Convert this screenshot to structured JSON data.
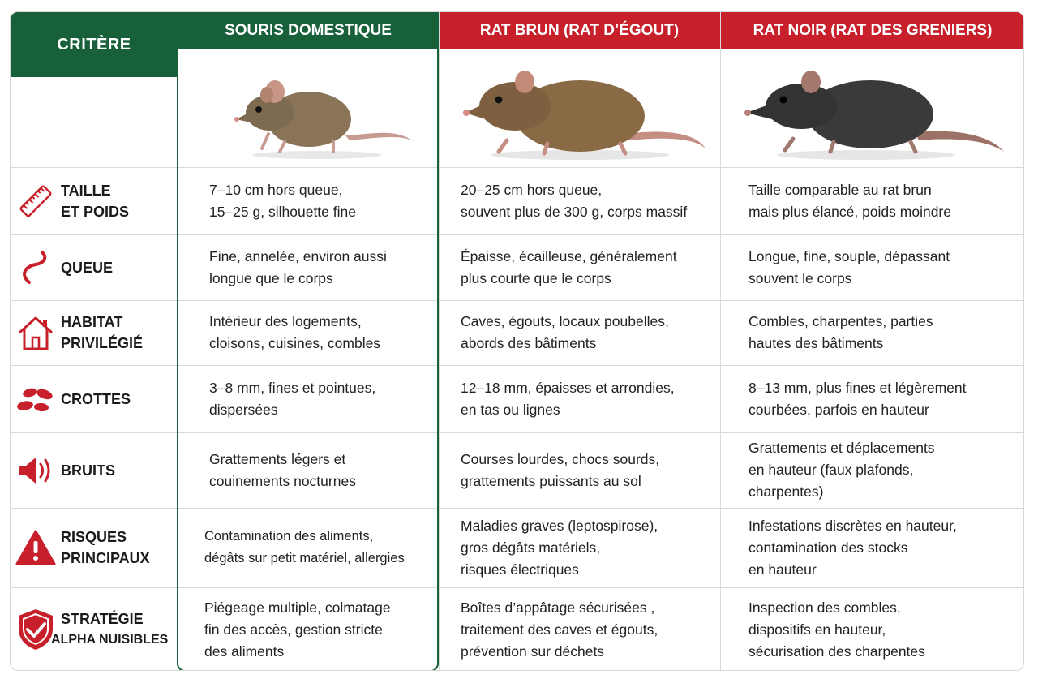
{
  "headers": {
    "criterion": "CRITÈRE",
    "columns": [
      "SOURIS DOMESTIQUE",
      "RAT BRUN (RAT D’ÉGOUT)",
      "RAT NOIR (RAT DES GRENIERS)"
    ]
  },
  "colors": {
    "green": "#17603a",
    "red": "#c8202b"
  },
  "rows": [
    {
      "icon": "ruler-icon",
      "label": "TAILLE\nET POIDS",
      "mouse": "7–10 cm hors queue,\n15–25 g, silhouette fine",
      "brown": "20–25 cm hors queue,\nsouvent plus de 300 g, corps massif",
      "black": "Taille comparable au rat brun\nmais plus élancé, poids moindre"
    },
    {
      "icon": "tail-icon",
      "label": "QUEUE",
      "mouse": "Fine, annelée, environ aussi\nlongue que le corps",
      "brown": "Épaisse, écailleuse, généralement\nplus courte que le corps",
      "black": "Longue, fine, souple, dépassant\nsouvent le corps"
    },
    {
      "icon": "house-icon",
      "label": "HABITAT\nPRIVILÉGIÉ",
      "mouse": "Intérieur des logements,\ncloisons, cuisines, combles",
      "brown": "Caves, égouts, locaux poubelles,\nabords des bâtiments",
      "black": "Combles, charpentes, parties\nhautes des bâtiments"
    },
    {
      "icon": "droppings-icon",
      "label": "CROTTES",
      "mouse": "3–8 mm, fines et pointues,\ndispersées",
      "brown": "12–18 mm, épaisses et arrondies,\nen tas ou lignes",
      "black": "8–13 mm, plus fines et légèrement\ncourbées, parfois en hauteur"
    },
    {
      "icon": "speaker-icon",
      "label": "BRUITS",
      "mouse": "Grattements légers et\ncouinements nocturnes",
      "brown": "Courses lourdes, chocs sourds,\ngrattements puissants au sol",
      "black": "Grattements et déplacements\nen hauteur (faux plafonds,\ncharpentes)"
    },
    {
      "icon": "warning-icon",
      "label": "RISQUES\nPRINCIPAUX",
      "mouse": "Contamination des aliments,\ndégâts sur petit matériel, allergies",
      "brown": "Maladies graves (leptospirose),\ngros dégâts matériels,\nrisques électriques",
      "black": "Infestations discrètes en hauteur,\ncontamination des stocks\nen hauteur"
    },
    {
      "icon": "shield-check-icon",
      "label": "STRATÉGIE",
      "label_sub": "ALPHA NUISIBLES",
      "mouse": "Piégeage multiple, colmatage\nfin des accès, gestion stricte\ndes aliments",
      "brown": "Boîtes d’appâtage sécurisées ,\ntraitement des caves et égouts,\nprévention sur déchets",
      "black": "Inspection des combles,\ndispositifs en hauteur,\nsécurisation des charpentes"
    }
  ]
}
